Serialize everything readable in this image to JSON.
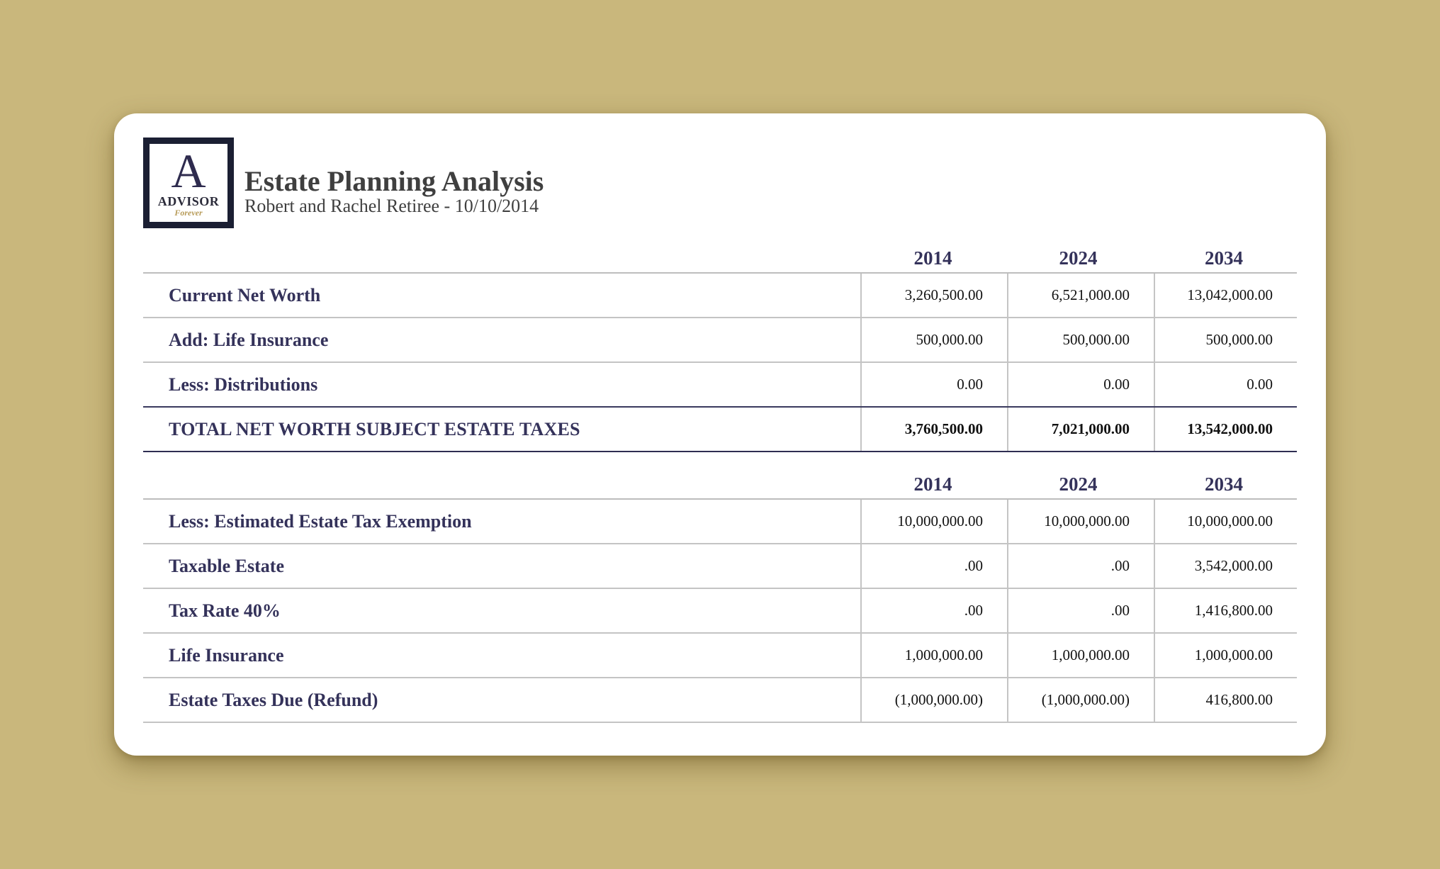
{
  "header": {
    "logo": {
      "letter": "A",
      "name": "ADVISOR",
      "tagline": "Forever"
    },
    "title": "Estate Planning Analysis",
    "subtitle": "Robert and Rachel Retiree - 10/10/2014"
  },
  "colors": {
    "background": "#c9b77c",
    "card": "#ffffff",
    "label_navy": "#34325a",
    "title_gray": "#3f3f3f",
    "logo_border": "#1b1f33",
    "logo_gold": "#b79b58"
  },
  "section1": {
    "years": [
      "2014",
      "2024",
      "2034"
    ],
    "rows": [
      {
        "label": "Current Net Worth",
        "values": [
          "3,260,500.00",
          "6,521,000.00",
          "13,042,000.00"
        ]
      },
      {
        "label": "Add: Life Insurance",
        "values": [
          "500,000.00",
          "500,000.00",
          "500,000.00"
        ]
      },
      {
        "label": "Less: Distributions",
        "values": [
          "0.00",
          "0.00",
          "0.00"
        ]
      }
    ],
    "total": {
      "label": "TOTAL NET WORTH SUBJECT ESTATE TAXES",
      "values": [
        "3,760,500.00",
        "7,021,000.00",
        "13,542,000.00"
      ]
    }
  },
  "section2": {
    "years": [
      "2014",
      "2024",
      "2034"
    ],
    "rows": [
      {
        "label": "Less: Estimated Estate Tax Exemption",
        "values": [
          "10,000,000.00",
          "10,000,000.00",
          "10,000,000.00"
        ]
      },
      {
        "label": "Taxable Estate",
        "values": [
          ".00",
          ".00",
          "3,542,000.00"
        ]
      },
      {
        "label": "Tax Rate 40%",
        "values": [
          ".00",
          ".00",
          "1,416,800.00"
        ]
      },
      {
        "label": "Life Insurance",
        "values": [
          "1,000,000.00",
          "1,000,000.00",
          "1,000,000.00"
        ]
      },
      {
        "label": "Estate Taxes Due (Refund)",
        "values": [
          "(1,000,000.00)",
          "(1,000,000.00)",
          "416,800.00"
        ]
      }
    ]
  }
}
